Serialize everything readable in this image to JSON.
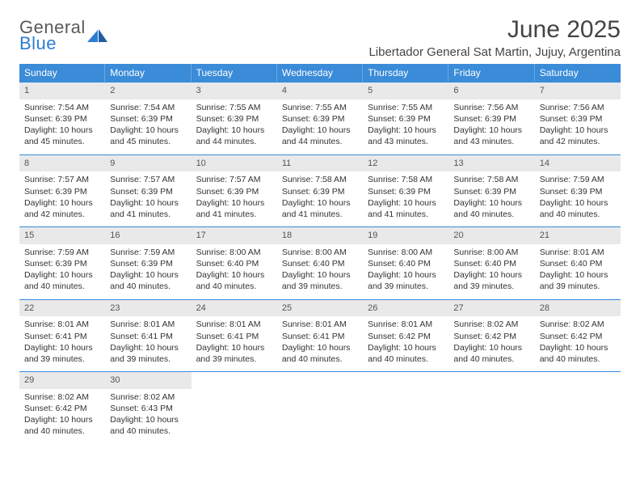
{
  "brand": {
    "name_part1": "General",
    "name_part2": "Blue",
    "text_color": "#5a5a5a",
    "accent_color": "#2d7dd2"
  },
  "title": "June 2025",
  "location": "Libertador General Sat Martin, Jujuy, Argentina",
  "colors": {
    "header_bg": "#3a8bd8",
    "header_text": "#ffffff",
    "daynum_bg": "#e9e9e9",
    "daynum_text": "#555555",
    "row_border": "#3a8bd8",
    "body_text": "#333333",
    "page_bg": "#ffffff"
  },
  "weekdays": [
    "Sunday",
    "Monday",
    "Tuesday",
    "Wednesday",
    "Thursday",
    "Friday",
    "Saturday"
  ],
  "weeks": [
    [
      {
        "n": "1",
        "sr": "Sunrise: 7:54 AM",
        "ss": "Sunset: 6:39 PM",
        "d1": "Daylight: 10 hours",
        "d2": "and 45 minutes."
      },
      {
        "n": "2",
        "sr": "Sunrise: 7:54 AM",
        "ss": "Sunset: 6:39 PM",
        "d1": "Daylight: 10 hours",
        "d2": "and 45 minutes."
      },
      {
        "n": "3",
        "sr": "Sunrise: 7:55 AM",
        "ss": "Sunset: 6:39 PM",
        "d1": "Daylight: 10 hours",
        "d2": "and 44 minutes."
      },
      {
        "n": "4",
        "sr": "Sunrise: 7:55 AM",
        "ss": "Sunset: 6:39 PM",
        "d1": "Daylight: 10 hours",
        "d2": "and 44 minutes."
      },
      {
        "n": "5",
        "sr": "Sunrise: 7:55 AM",
        "ss": "Sunset: 6:39 PM",
        "d1": "Daylight: 10 hours",
        "d2": "and 43 minutes."
      },
      {
        "n": "6",
        "sr": "Sunrise: 7:56 AM",
        "ss": "Sunset: 6:39 PM",
        "d1": "Daylight: 10 hours",
        "d2": "and 43 minutes."
      },
      {
        "n": "7",
        "sr": "Sunrise: 7:56 AM",
        "ss": "Sunset: 6:39 PM",
        "d1": "Daylight: 10 hours",
        "d2": "and 42 minutes."
      }
    ],
    [
      {
        "n": "8",
        "sr": "Sunrise: 7:57 AM",
        "ss": "Sunset: 6:39 PM",
        "d1": "Daylight: 10 hours",
        "d2": "and 42 minutes."
      },
      {
        "n": "9",
        "sr": "Sunrise: 7:57 AM",
        "ss": "Sunset: 6:39 PM",
        "d1": "Daylight: 10 hours",
        "d2": "and 41 minutes."
      },
      {
        "n": "10",
        "sr": "Sunrise: 7:57 AM",
        "ss": "Sunset: 6:39 PM",
        "d1": "Daylight: 10 hours",
        "d2": "and 41 minutes."
      },
      {
        "n": "11",
        "sr": "Sunrise: 7:58 AM",
        "ss": "Sunset: 6:39 PM",
        "d1": "Daylight: 10 hours",
        "d2": "and 41 minutes."
      },
      {
        "n": "12",
        "sr": "Sunrise: 7:58 AM",
        "ss": "Sunset: 6:39 PM",
        "d1": "Daylight: 10 hours",
        "d2": "and 41 minutes."
      },
      {
        "n": "13",
        "sr": "Sunrise: 7:58 AM",
        "ss": "Sunset: 6:39 PM",
        "d1": "Daylight: 10 hours",
        "d2": "and 40 minutes."
      },
      {
        "n": "14",
        "sr": "Sunrise: 7:59 AM",
        "ss": "Sunset: 6:39 PM",
        "d1": "Daylight: 10 hours",
        "d2": "and 40 minutes."
      }
    ],
    [
      {
        "n": "15",
        "sr": "Sunrise: 7:59 AM",
        "ss": "Sunset: 6:39 PM",
        "d1": "Daylight: 10 hours",
        "d2": "and 40 minutes."
      },
      {
        "n": "16",
        "sr": "Sunrise: 7:59 AM",
        "ss": "Sunset: 6:39 PM",
        "d1": "Daylight: 10 hours",
        "d2": "and 40 minutes."
      },
      {
        "n": "17",
        "sr": "Sunrise: 8:00 AM",
        "ss": "Sunset: 6:40 PM",
        "d1": "Daylight: 10 hours",
        "d2": "and 40 minutes."
      },
      {
        "n": "18",
        "sr": "Sunrise: 8:00 AM",
        "ss": "Sunset: 6:40 PM",
        "d1": "Daylight: 10 hours",
        "d2": "and 39 minutes."
      },
      {
        "n": "19",
        "sr": "Sunrise: 8:00 AM",
        "ss": "Sunset: 6:40 PM",
        "d1": "Daylight: 10 hours",
        "d2": "and 39 minutes."
      },
      {
        "n": "20",
        "sr": "Sunrise: 8:00 AM",
        "ss": "Sunset: 6:40 PM",
        "d1": "Daylight: 10 hours",
        "d2": "and 39 minutes."
      },
      {
        "n": "21",
        "sr": "Sunrise: 8:01 AM",
        "ss": "Sunset: 6:40 PM",
        "d1": "Daylight: 10 hours",
        "d2": "and 39 minutes."
      }
    ],
    [
      {
        "n": "22",
        "sr": "Sunrise: 8:01 AM",
        "ss": "Sunset: 6:41 PM",
        "d1": "Daylight: 10 hours",
        "d2": "and 39 minutes."
      },
      {
        "n": "23",
        "sr": "Sunrise: 8:01 AM",
        "ss": "Sunset: 6:41 PM",
        "d1": "Daylight: 10 hours",
        "d2": "and 39 minutes."
      },
      {
        "n": "24",
        "sr": "Sunrise: 8:01 AM",
        "ss": "Sunset: 6:41 PM",
        "d1": "Daylight: 10 hours",
        "d2": "and 39 minutes."
      },
      {
        "n": "25",
        "sr": "Sunrise: 8:01 AM",
        "ss": "Sunset: 6:41 PM",
        "d1": "Daylight: 10 hours",
        "d2": "and 40 minutes."
      },
      {
        "n": "26",
        "sr": "Sunrise: 8:01 AM",
        "ss": "Sunset: 6:42 PM",
        "d1": "Daylight: 10 hours",
        "d2": "and 40 minutes."
      },
      {
        "n": "27",
        "sr": "Sunrise: 8:02 AM",
        "ss": "Sunset: 6:42 PM",
        "d1": "Daylight: 10 hours",
        "d2": "and 40 minutes."
      },
      {
        "n": "28",
        "sr": "Sunrise: 8:02 AM",
        "ss": "Sunset: 6:42 PM",
        "d1": "Daylight: 10 hours",
        "d2": "and 40 minutes."
      }
    ],
    [
      {
        "n": "29",
        "sr": "Sunrise: 8:02 AM",
        "ss": "Sunset: 6:42 PM",
        "d1": "Daylight: 10 hours",
        "d2": "and 40 minutes."
      },
      {
        "n": "30",
        "sr": "Sunrise: 8:02 AM",
        "ss": "Sunset: 6:43 PM",
        "d1": "Daylight: 10 hours",
        "d2": "and 40 minutes."
      },
      {
        "empty": true
      },
      {
        "empty": true
      },
      {
        "empty": true
      },
      {
        "empty": true
      },
      {
        "empty": true
      }
    ]
  ]
}
